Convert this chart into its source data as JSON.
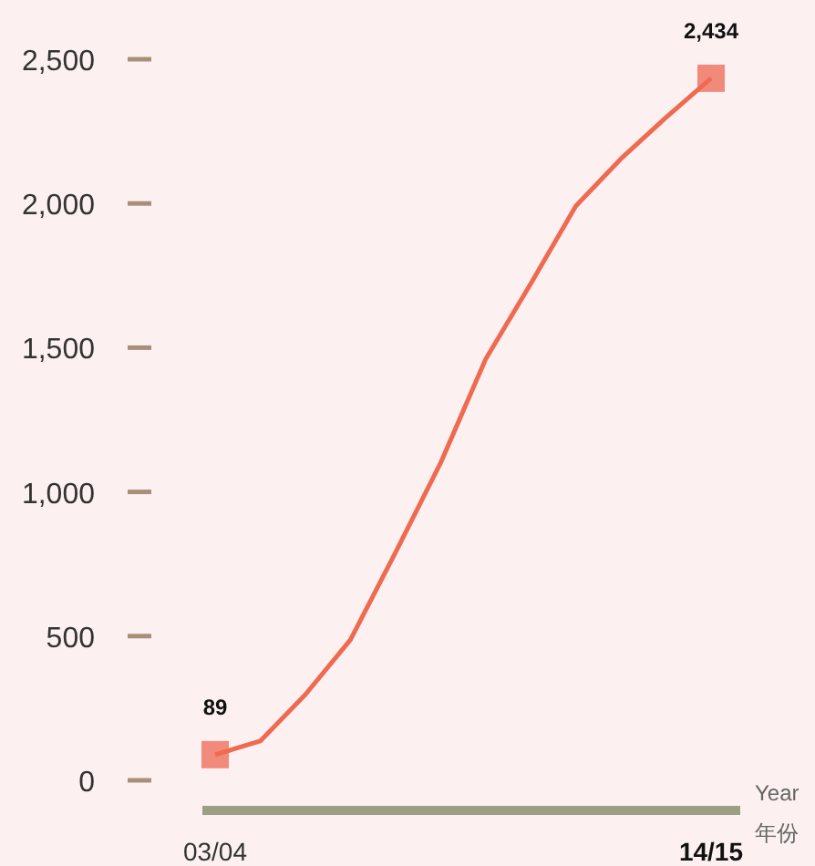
{
  "chart_data": {
    "type": "line",
    "xlabel": "Year\n年份",
    "categories": [
      "03/04",
      null,
      null,
      null,
      null,
      null,
      null,
      null,
      null,
      null,
      null,
      "14/15"
    ],
    "series": [
      {
        "color": "#ee6a50",
        "values": [
          89,
          136,
          297,
          487,
          790,
          1100,
          1460,
          1722,
          1991,
          2155,
          2298,
          2434
        ],
        "value_labels": [
          "89",
          null,
          null,
          null,
          null,
          null,
          null,
          null,
          null,
          null,
          null,
          "2,434"
        ]
      }
    ],
    "ylim": [
      0,
      2500
    ],
    "yticks": [
      0,
      500,
      {
        "value": 1000,
        "label": "1,000"
      },
      {
        "value": 1500,
        "label": "1,500"
      },
      {
        "value": 2000,
        "label": "2,000"
      },
      {
        "value": 2500,
        "label": "2,500"
      }
    ],
    "grid": false
  }
}
